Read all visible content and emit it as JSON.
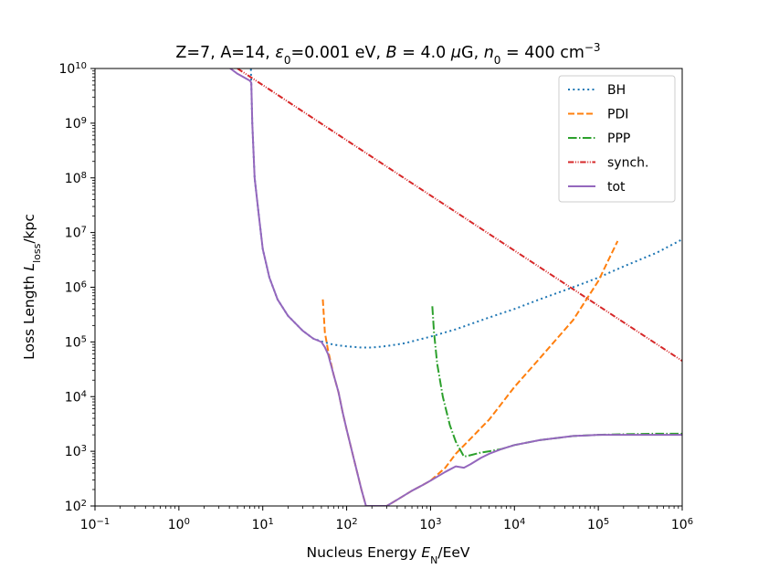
{
  "chart_data": {
    "type": "line",
    "title": "Z=7, A=14, ε₀=0.001 eV, B = 4.0 μG, n₀ = 400 cm⁻³",
    "title_parts": {
      "p1": "Z=7, A=14, ",
      "eps": "ε",
      "eps_sub": "0",
      "p2": "=0.001 eV, ",
      "b": "B",
      "p3": " = 4.0 ",
      "mu": "μ",
      "p4": "G, ",
      "n": "n",
      "n_sub": "0",
      "p5": " = 400 cm",
      "p5_sup": "−3"
    },
    "xlabel": {
      "prefix": "Nucleus Energy ",
      "sym": "E",
      "sub": "N",
      "suffix": "/EeV"
    },
    "ylabel": {
      "prefix": "Loss Length ",
      "sym": "L",
      "sub": "loss",
      "suffix": "/kpc"
    },
    "xscale": "log",
    "yscale": "log",
    "xlim": [
      0.1,
      1000000
    ],
    "ylim": [
      100,
      10000000000
    ],
    "x_ticks": [
      {
        "value": 0.1,
        "base": "10",
        "exp": "−1"
      },
      {
        "value": 1,
        "base": "10",
        "exp": "0"
      },
      {
        "value": 10,
        "base": "10",
        "exp": "1"
      },
      {
        "value": 100,
        "base": "10",
        "exp": "2"
      },
      {
        "value": 1000,
        "base": "10",
        "exp": "3"
      },
      {
        "value": 10000,
        "base": "10",
        "exp": "4"
      },
      {
        "value": 100000,
        "base": "10",
        "exp": "5"
      },
      {
        "value": 1000000,
        "base": "10",
        "exp": "6"
      }
    ],
    "y_ticks": [
      {
        "value": 100,
        "base": "10",
        "exp": "2"
      },
      {
        "value": 1000,
        "base": "10",
        "exp": "3"
      },
      {
        "value": 10000,
        "base": "10",
        "exp": "4"
      },
      {
        "value": 100000,
        "base": "10",
        "exp": "5"
      },
      {
        "value": 1000000,
        "base": "10",
        "exp": "6"
      },
      {
        "value": 10000000,
        "base": "10",
        "exp": "7"
      },
      {
        "value": 100000000,
        "base": "10",
        "exp": "8"
      },
      {
        "value": 1000000000,
        "base": "10",
        "exp": "9"
      },
      {
        "value": 10000000000,
        "base": "10",
        "exp": "10"
      }
    ],
    "grid": false,
    "legend_position": "top-right",
    "series": [
      {
        "name": "BH",
        "color": "#1f77b4",
        "dash": "dotted",
        "points": [
          [
            7.2,
            12000000000.0
          ],
          [
            7.5,
            1000000000.0
          ],
          [
            8,
            100000000.0
          ],
          [
            9,
            20000000.0
          ],
          [
            10,
            5000000.0
          ],
          [
            12,
            1500000.0
          ],
          [
            15,
            600000.0
          ],
          [
            20,
            300000.0
          ],
          [
            30,
            160000.0
          ],
          [
            40,
            115000.0
          ],
          [
            50,
            102000.0
          ],
          [
            70,
            89000.0
          ],
          [
            100,
            83000.0
          ],
          [
            150,
            79000.0
          ],
          [
            200,
            79000.0
          ],
          [
            300,
            84000.0
          ],
          [
            500,
            95000.0
          ],
          [
            1000,
            125000.0
          ],
          [
            2000,
            170000.0
          ],
          [
            5000,
            280000.0
          ],
          [
            10000,
            400000.0
          ],
          [
            20000,
            600000.0
          ],
          [
            50000,
            1000000.0
          ],
          [
            100000,
            1500000.0
          ],
          [
            200000,
            2400000.0
          ],
          [
            500000,
            4300000.0
          ],
          [
            1000000,
            7500000.0
          ]
        ]
      },
      {
        "name": "PDI",
        "color": "#ff7f0e",
        "dash": "dashed",
        "points": [
          [
            52,
            600000.0
          ],
          [
            55,
            150000.0
          ],
          [
            60,
            70000.0
          ],
          [
            70,
            25000.0
          ],
          [
            80,
            12000.0
          ],
          [
            90,
            5000.0
          ],
          [
            100,
            2500.0
          ],
          [
            120,
            800
          ],
          [
            150,
            200
          ],
          [
            170,
            100
          ],
          [
            300,
            100
          ],
          [
            400,
            130
          ],
          [
            600,
            190
          ],
          [
            800,
            240
          ],
          [
            1000,
            290
          ],
          [
            1500,
            500
          ],
          [
            2000,
            900
          ],
          [
            5000,
            3800
          ],
          [
            10000,
            15000.0
          ],
          [
            20000,
            50000.0
          ],
          [
            50000,
            250000.0
          ],
          [
            100000,
            1300000.0
          ],
          [
            170000,
            7000000.0
          ]
        ]
      },
      {
        "name": "PPP",
        "color": "#2ca02c",
        "dash": "dashdot",
        "points": [
          [
            1050,
            450000.0
          ],
          [
            1100,
            150000.0
          ],
          [
            1200,
            40000.0
          ],
          [
            1400,
            10000.0
          ],
          [
            1700,
            3000
          ],
          [
            2000,
            1500
          ],
          [
            2500,
            800
          ],
          [
            3000,
            850
          ],
          [
            4000,
            950
          ],
          [
            5000,
            1000
          ],
          [
            7000,
            1100
          ],
          [
            10000,
            1300
          ],
          [
            20000,
            1600
          ],
          [
            50000,
            1900
          ],
          [
            100000,
            2000
          ],
          [
            200000,
            2050
          ],
          [
            500000,
            2100
          ],
          [
            1000000,
            2100
          ]
        ]
      },
      {
        "name": "synch.",
        "color": "#d62728",
        "dash": "dashdotdot",
        "points": [
          [
            5,
            10000000000.0
          ],
          [
            1000000,
            45000.0
          ]
        ]
      },
      {
        "name": "tot",
        "color": "#9467bd",
        "dash": "solid",
        "points": [
          [
            3.5,
            12000000000.0
          ],
          [
            5,
            8000000000.0
          ],
          [
            7,
            6000000000.0
          ],
          [
            7.3,
            5500000000.0
          ],
          [
            7.5,
            1000000000.0
          ],
          [
            8,
            100000000.0
          ],
          [
            9,
            20000000.0
          ],
          [
            10,
            5000000.0
          ],
          [
            12,
            1500000.0
          ],
          [
            15,
            600000.0
          ],
          [
            20,
            300000.0
          ],
          [
            30,
            160000.0
          ],
          [
            40,
            115000.0
          ],
          [
            50,
            100000.0
          ],
          [
            55,
            80000.0
          ],
          [
            60,
            60000.0
          ],
          [
            70,
            25000.0
          ],
          [
            80,
            12000.0
          ],
          [
            90,
            5000.0
          ],
          [
            100,
            2500.0
          ],
          [
            120,
            800
          ],
          [
            150,
            200
          ],
          [
            170,
            100
          ],
          [
            300,
            100
          ],
          [
            400,
            130
          ],
          [
            600,
            190
          ],
          [
            800,
            240
          ],
          [
            1000,
            290
          ],
          [
            1500,
            420
          ],
          [
            2000,
            530
          ],
          [
            2500,
            500
          ],
          [
            3000,
            580
          ],
          [
            4000,
            760
          ],
          [
            5000,
            900
          ],
          [
            7000,
            1100
          ],
          [
            10000,
            1300
          ],
          [
            20000,
            1600
          ],
          [
            50000,
            1900
          ],
          [
            100000,
            2000
          ],
          [
            200000,
            2000
          ],
          [
            500000,
            2000
          ],
          [
            1000000,
            2000
          ]
        ]
      }
    ]
  }
}
